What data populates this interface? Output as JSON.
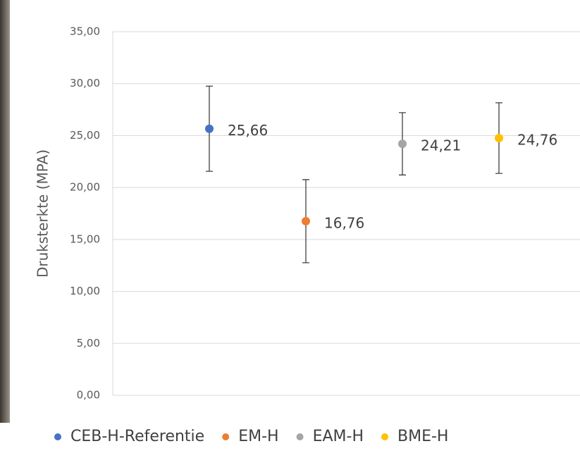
{
  "chart_data": {
    "type": "scatter",
    "y_label": "Druksterkte (MPA)",
    "xlim": [
      0,
      5
    ],
    "ylim": [
      0,
      35
    ],
    "yticks": [
      {
        "value": 0,
        "label": "0,00"
      },
      {
        "value": 5,
        "label": "5,00"
      },
      {
        "value": 10,
        "label": "10,00"
      },
      {
        "value": 15,
        "label": "15,00"
      },
      {
        "value": 20,
        "label": "20,00"
      },
      {
        "value": 25,
        "label": "25,00"
      },
      {
        "value": 30,
        "label": "30,00"
      },
      {
        "value": 35,
        "label": "35,00"
      }
    ],
    "grid": true,
    "legend": "bottom",
    "series": [
      {
        "name": "CEB-H-Referentie",
        "color": "#4472c4",
        "x": [
          1
        ],
        "values": [
          25.66
        ],
        "errors": [
          4.1
        ],
        "value_labels": [
          "25,66"
        ]
      },
      {
        "name": "EM-H",
        "color": "#ed7d31",
        "x": [
          2
        ],
        "values": [
          16.76
        ],
        "errors": [
          4.0
        ],
        "value_labels": [
          "16,76"
        ]
      },
      {
        "name": "EAM-H",
        "color": "#a5a5a5",
        "x": [
          3
        ],
        "values": [
          24.21
        ],
        "errors": [
          3.0
        ],
        "value_labels": [
          "24,21"
        ]
      },
      {
        "name": "BME-H",
        "color": "#ffc000",
        "x": [
          4
        ],
        "values": [
          24.76
        ],
        "errors": [
          3.4
        ],
        "value_labels": [
          "24,76"
        ]
      }
    ]
  }
}
